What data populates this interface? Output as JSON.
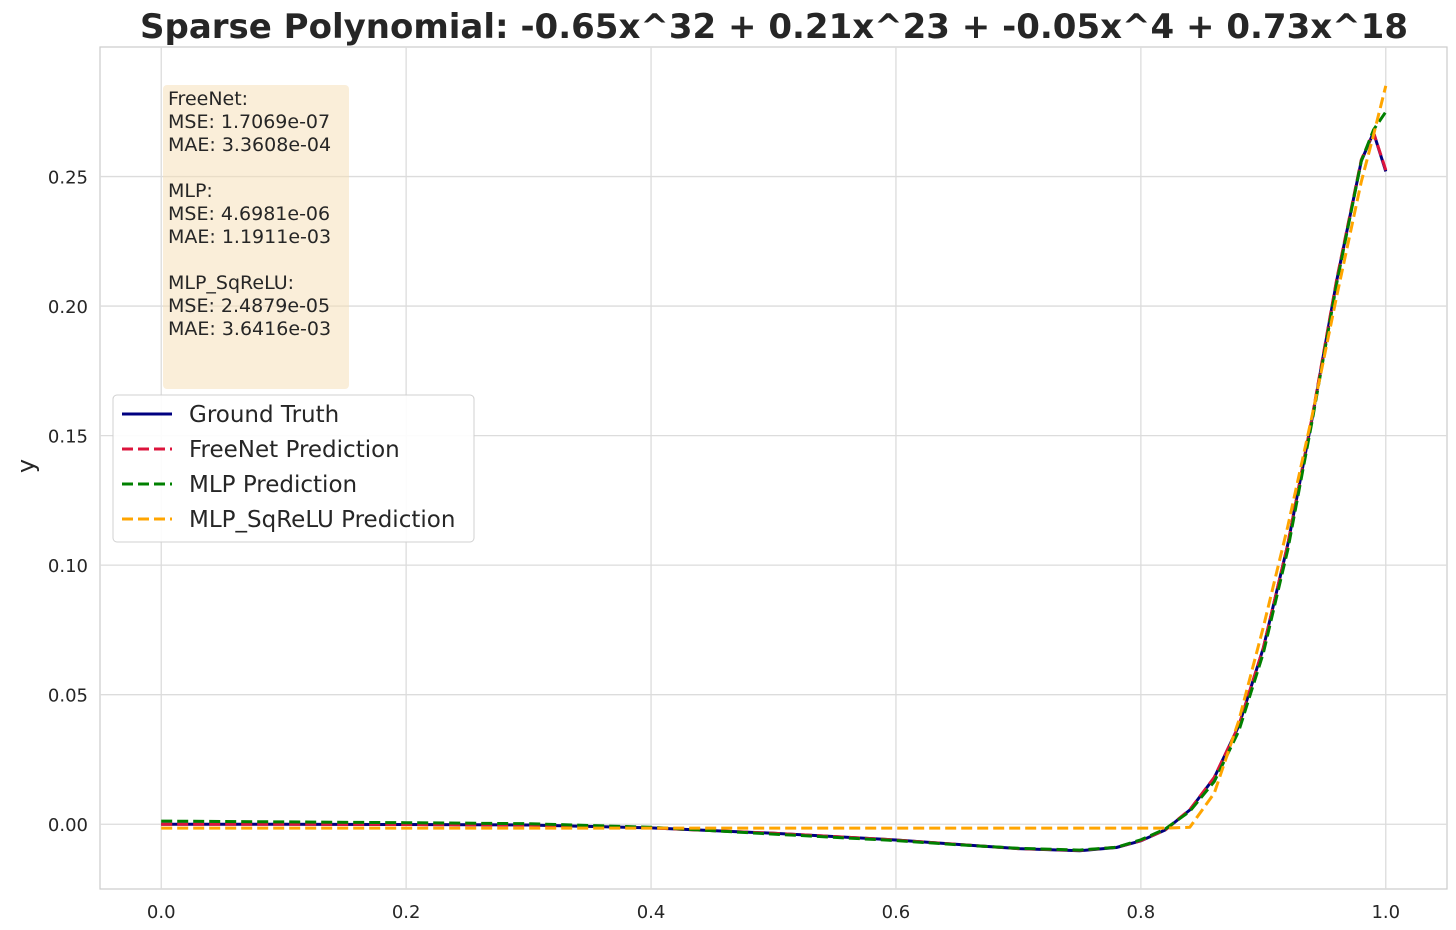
{
  "chart_data": {
    "type": "line",
    "title": "Sparse Polynomial: -0.65x^32 + 0.21x^23 + -0.05x^4 + 0.73x^18",
    "xlabel": "",
    "ylabel": "y",
    "xlim": [
      -0.05,
      1.05
    ],
    "ylim": [
      -0.025,
      0.3
    ],
    "xticks": [
      0.0,
      0.2,
      0.4,
      0.6,
      0.8,
      1.0
    ],
    "xtick_labels": [
      "0.0",
      "0.2",
      "0.4",
      "0.6",
      "0.8",
      "1.0"
    ],
    "yticks": [
      0.0,
      0.05,
      0.1,
      0.15,
      0.2,
      0.25
    ],
    "ytick_labels": [
      "0.00",
      "0.05",
      "0.10",
      "0.15",
      "0.20",
      "0.25"
    ],
    "grid": true,
    "legend_position": "center-left",
    "x": [
      0.0,
      0.1,
      0.2,
      0.3,
      0.4,
      0.5,
      0.6,
      0.65,
      0.7,
      0.75,
      0.78,
      0.8,
      0.82,
      0.84,
      0.86,
      0.88,
      0.9,
      0.92,
      0.94,
      0.96,
      0.98,
      0.99,
      1.0
    ],
    "series": [
      {
        "name": "Ground Truth",
        "color": "#000080",
        "dash": "solid",
        "values": [
          0.0,
          0.0,
          -0.0001,
          -0.0003,
          -0.0014,
          -0.0035,
          -0.0061,
          -0.0078,
          -0.0094,
          -0.0102,
          -0.009,
          -0.0064,
          -0.0022,
          0.0055,
          0.018,
          0.038,
          0.068,
          0.108,
          0.157,
          0.21,
          0.256,
          0.267,
          0.252
        ]
      },
      {
        "name": "FreeNet Prediction",
        "color": "#dc143c",
        "dash": "dashed",
        "values": [
          0.0,
          0.0,
          -0.0001,
          -0.0003,
          -0.0014,
          -0.0035,
          -0.0061,
          -0.0078,
          -0.0094,
          -0.0101,
          -0.0089,
          -0.0063,
          -0.0021,
          0.0056,
          0.0181,
          0.038,
          0.068,
          0.108,
          0.1575,
          0.2105,
          0.2565,
          0.267,
          0.2525
        ]
      },
      {
        "name": "MLP Prediction",
        "color": "#008000",
        "dash": "dashed",
        "values": [
          0.0012,
          0.0009,
          0.0006,
          0.0002,
          -0.0012,
          -0.0038,
          -0.0063,
          -0.0079,
          -0.0093,
          -0.01,
          -0.0089,
          -0.006,
          -0.0018,
          0.005,
          0.0165,
          0.036,
          0.066,
          0.106,
          0.156,
          0.209,
          0.256,
          0.268,
          0.275
        ]
      },
      {
        "name": "MLP_SqReLU Prediction",
        "color": "#ffa500",
        "dash": "dashed",
        "values": [
          -0.0015,
          -0.0015,
          -0.0015,
          -0.0015,
          -0.0015,
          -0.0015,
          -0.0015,
          -0.0015,
          -0.0015,
          -0.0015,
          -0.0015,
          -0.0015,
          -0.0015,
          -0.0012,
          0.012,
          0.04,
          0.076,
          0.115,
          0.158,
          0.204,
          0.248,
          0.266,
          0.285
        ]
      }
    ],
    "stats_box": {
      "lines": [
        "FreeNet:",
        "MSE: 1.7069e-07",
        "MAE: 3.3608e-04",
        "",
        "MLP:",
        "MSE: 4.6981e-06",
        "MAE: 1.1911e-03",
        "",
        "MLP_SqReLU:",
        "MSE: 2.4879e-05",
        "MAE: 3.6416e-03"
      ],
      "background": "#f5deb3"
    }
  }
}
